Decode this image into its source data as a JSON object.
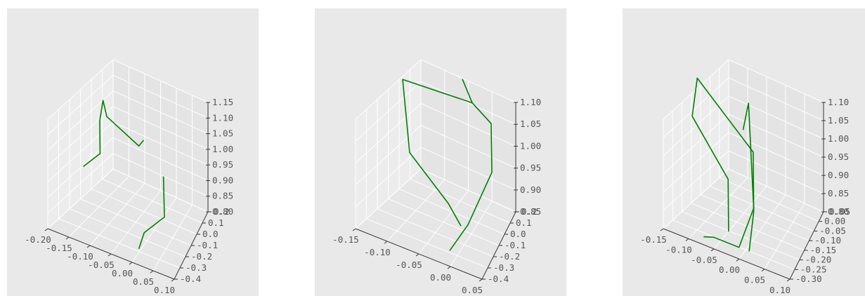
{
  "chart_data": [
    {
      "type": "line3d",
      "title": "",
      "series": [
        {
          "color": "#008000",
          "points": [
            [
              -0.176,
              0.05,
              0.85
            ],
            [
              -0.14,
              0.08,
              0.9
            ],
            [
              -0.13,
              0.0,
              1.04
            ],
            [
              -0.125,
              0.02,
              1.1
            ],
            [
              -0.12,
              0.05,
              1.04
            ],
            [
              -0.04,
              0.02,
              1.0
            ],
            [
              -0.03,
              0.03,
              1.02
            ]
          ]
        },
        {
          "color": "#008000",
          "points": [
            [
              0.0,
              -0.28,
              0.8
            ],
            [
              0.01,
              -0.26,
              0.85
            ],
            [
              0.05,
              -0.2,
              0.9
            ],
            [
              0.045,
              -0.18,
              1.02
            ]
          ]
        }
      ],
      "axes": {
        "x": {
          "ticks": [
            "-0.20",
            "-0.15",
            "-0.10",
            "-0.05",
            "0.00",
            "0.05",
            "0.10"
          ],
          "range": [
            -0.2,
            0.1
          ]
        },
        "y": {
          "ticks": [
            "-0.4",
            "-0.3",
            "-0.2",
            "-0.1",
            "0.0",
            "0.1",
            "0.2"
          ],
          "range": [
            -0.4,
            0.2
          ]
        },
        "z": {
          "ticks": [
            "0.80",
            "0.85",
            "0.90",
            "0.95",
            "1.00",
            "1.05",
            "1.10",
            "1.15"
          ],
          "range": [
            0.8,
            1.15
          ]
        }
      },
      "partial_labels": [
        "-0.1"
      ],
      "grid": true
    },
    {
      "type": "line3d",
      "title": "",
      "series": [
        {
          "color": "#008000",
          "points": [
            [
              -0.01,
              -0.3,
              0.855
            ],
            [
              0.01,
              -0.2,
              0.9
            ],
            [
              0.03,
              0.0,
              0.98
            ],
            [
              0.02,
              0.1,
              1.06
            ],
            [
              -0.01,
              0.1,
              1.09
            ],
            [
              -0.12,
              0.1,
              1.08
            ],
            [
              -0.1,
              0.0,
              0.95
            ],
            [
              -0.03,
              -0.1,
              0.9
            ],
            [
              -0.01,
              -0.1,
              0.86
            ]
          ]
        },
        {
          "color": "#008000",
          "points": [
            [
              -0.01,
              0.1,
              1.09
            ],
            [
              -0.03,
              0.15,
              1.12
            ]
          ]
        }
      ],
      "axes": {
        "x": {
          "ticks": [
            "-0.15",
            "-0.10",
            "-0.05",
            "0.00",
            "0.05"
          ],
          "range": [
            -0.15,
            0.05
          ]
        },
        "y": {
          "ticks": [
            "-0.4",
            "-0.3",
            "-0.2",
            "-0.1",
            "0.0",
            "0.1",
            "0.2"
          ],
          "range": [
            -0.4,
            0.2
          ]
        },
        "z": {
          "ticks": [
            "0.85",
            "0.90",
            "0.95",
            "1.00",
            "1.05",
            "1.10"
          ],
          "range": [
            0.85,
            1.1
          ]
        }
      },
      "partial_labels": [],
      "grid": true
    },
    {
      "type": "line3d",
      "title": "",
      "series": [
        {
          "color": "#008000",
          "points": [
            [
              0.01,
              -0.25,
              0.8
            ],
            [
              0.0,
              -0.15,
              0.85
            ],
            [
              -0.02,
              -0.05,
              0.95
            ],
            [
              -0.14,
              0.0,
              1.06
            ],
            [
              -0.15,
              0.0,
              0.95
            ],
            [
              -0.06,
              -0.1,
              0.88
            ],
            [
              -0.04,
              -0.2,
              0.8
            ]
          ]
        },
        {
          "color": "#008000",
          "points": [
            [
              -0.04,
              -0.05,
              1.0
            ],
            [
              -0.035,
              -0.02,
              1.06
            ],
            [
              0.0,
              -0.15,
              0.86
            ],
            [
              -0.01,
              -0.25,
              0.8
            ],
            [
              -0.06,
              -0.25,
              0.8
            ],
            [
              -0.08,
              -0.25,
              0.79
            ]
          ]
        }
      ],
      "axes": {
        "x": {
          "ticks": [
            "-0.15",
            "-0.10",
            "-0.05",
            "0.00",
            "0.05",
            "0.10"
          ],
          "range": [
            -0.15,
            0.1
          ]
        },
        "y": {
          "ticks": [
            "-0.30",
            "-0.25",
            "-0.20",
            "-0.15",
            "-0.10",
            "-0.05",
            "0.00",
            "0.05"
          ],
          "range": [
            -0.3,
            0.05
          ]
        },
        "z": {
          "ticks": [
            "0.80",
            "0.85",
            "0.90",
            "0.95",
            "1.00",
            "1.05",
            "1.10"
          ],
          "range": [
            0.8,
            1.1
          ]
        }
      },
      "partial_labels": [
        "0.1",
        "0.1"
      ],
      "grid": true
    }
  ]
}
